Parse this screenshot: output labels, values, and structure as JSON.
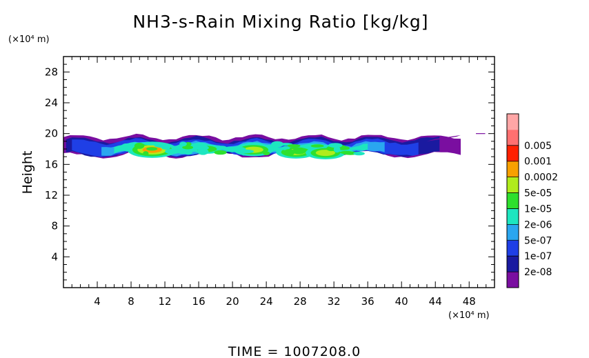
{
  "chart_data": {
    "type": "heatmap",
    "title": "NH3-s-Rain Mixing Ratio [kg/kg]",
    "ylabel": "Height",
    "y_unit": "(×10⁴ m)",
    "x_unit": "(×10⁴ m)",
    "xlim": [
      0,
      51
    ],
    "ylim": [
      0,
      30
    ],
    "x_ticks": [
      "4",
      "8",
      "12",
      "16",
      "20",
      "24",
      "28",
      "32",
      "36",
      "40",
      "44",
      "48"
    ],
    "y_ticks": [
      "4",
      "8",
      "12",
      "16",
      "20",
      "24",
      "28"
    ],
    "footer": "TIME = 1007208.0",
    "colorbar": {
      "levels": [
        "2e-08",
        "1e-07",
        "5e-07",
        "2e-06",
        "1e-05",
        "5e-05",
        "0.0002",
        "0.001",
        "0.005"
      ],
      "colors": [
        "#7a0ea0",
        "#1a1aa0",
        "#1f3fe6",
        "#2aa6f0",
        "#1de6c0",
        "#2ee02e",
        "#b0ec1c",
        "#f8a000",
        "#ff2000",
        "#ff7070",
        "#ffa6a6"
      ]
    },
    "field": {
      "description_levels_index": "0=2e-08 ... 8=0.005",
      "band": {
        "x": [
          0,
          47
        ],
        "y_bottom": [
          16.5,
          17.5
        ],
        "y_top": [
          19.0,
          20.2
        ]
      },
      "cores": [
        {
          "x": 10.5,
          "y": 17.9,
          "level": 7
        },
        {
          "x": 22.5,
          "y": 17.9,
          "level": 6
        },
        {
          "x": 27.5,
          "y": 17.6,
          "level": 6
        },
        {
          "x": 31.0,
          "y": 17.5,
          "level": 6
        },
        {
          "x": 17.0,
          "y": 18.0,
          "level": 5
        }
      ]
    }
  }
}
